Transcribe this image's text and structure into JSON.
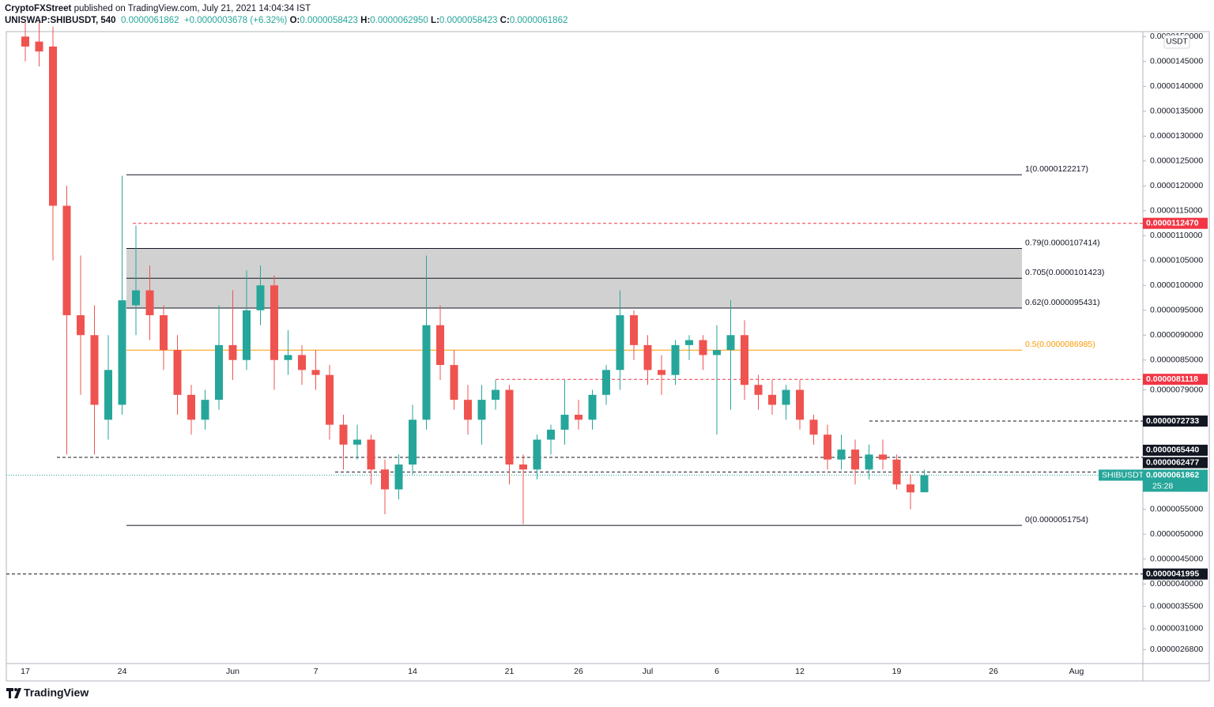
{
  "header": {
    "author": "CryptoFXStreet",
    "published": "published on TradingView.com, July 21, 2021 14:04:34 IST",
    "symbol": "UNISWAP:SHIBUSDT, 540",
    "last": "0.0000061862",
    "change": "+0.0000003678 (+6.32%)",
    "ohlc": [
      {
        "key": "O:",
        "value": "0.0000058423"
      },
      {
        "key": "H:",
        "value": "0.0000062950"
      },
      {
        "key": "L:",
        "value": "0.0000058423"
      },
      {
        "key": "C:",
        "value": "0.0000061862"
      }
    ]
  },
  "footer": {
    "brand": "TradingView"
  },
  "chart_data": {
    "type": "candlestick",
    "currency": "USDT",
    "categories": [
      "17",
      null,
      null,
      null,
      null,
      null,
      null,
      "24",
      null,
      null,
      null,
      null,
      null,
      null,
      null,
      "Jun",
      null,
      null,
      null,
      null,
      null,
      "7",
      null,
      null,
      null,
      null,
      null,
      null,
      "14",
      null,
      null,
      null,
      null,
      null,
      null,
      "21",
      null,
      null,
      null,
      null,
      "26",
      null,
      null,
      null,
      null,
      "Jul",
      null,
      null,
      null,
      null,
      "6",
      null,
      null,
      null,
      null,
      null,
      "12",
      null,
      null,
      null,
      null,
      null,
      null,
      "19",
      null,
      null,
      null,
      null,
      null,
      null,
      "26",
      null,
      null,
      null,
      null,
      null,
      "Aug",
      null,
      null,
      null,
      null
    ],
    "open": [
      1.5e-05,
      1.49e-05,
      1.48e-05,
      1.16e-05,
      9.4e-06,
      9e-06,
      7.3e-06,
      7.6e-06,
      9.6e-06,
      9.9e-06,
      9.4e-06,
      8.7e-06,
      7.8e-06,
      7.3e-06,
      7.7e-06,
      8.8e-06,
      8.5e-06,
      9.5e-06,
      1e-05,
      8.5e-06,
      8.6e-06,
      8.3e-06,
      8.2e-06,
      7.2e-06,
      6.8e-06,
      6.9e-06,
      6.3e-06,
      5.9e-06,
      6.4e-06,
      7.3e-06,
      9.2e-06,
      8.4e-06,
      7.7e-06,
      7.3e-06,
      7.7e-06,
      7.9e-06,
      6.4e-06,
      6.3e-06,
      6.9e-06,
      7.1e-06,
      7.4e-06,
      7.3e-06,
      7.8e-06,
      8.3e-06,
      9.4e-06,
      8.8e-06,
      8.3e-06,
      8.2e-06,
      8.8e-06,
      8.9e-06,
      8.6e-06,
      8.7e-06,
      9e-06,
      8e-06,
      7.8e-06,
      7.6e-06,
      7.9e-06,
      7.3e-06,
      7e-06,
      6.5e-06,
      6.7e-06,
      6.3e-06,
      6.6e-06,
      6.5e-06,
      6e-06,
      5.8423e-06,
      null,
      null,
      null,
      null,
      null,
      null,
      null,
      null,
      null,
      null,
      null,
      null,
      null,
      null,
      null
    ],
    "high": [
      1.53e-05,
      1.53e-05,
      1.52e-05,
      1.2e-05,
      1.06e-05,
      9.6e-06,
      9e-06,
      1.22e-05,
      1.12e-05,
      1.04e-05,
      9.6e-06,
      9e-06,
      8e-06,
      7.9e-06,
      9.6e-06,
      9.9e-06,
      1.03e-05,
      1.04e-05,
      1.02e-05,
      9.1e-06,
      8.8e-06,
      8.7e-06,
      8.4e-06,
      7.4e-06,
      7.2e-06,
      7e-06,
      6.5e-06,
      6.6e-06,
      7.6e-06,
      1.06e-05,
      9.6e-06,
      8.7e-06,
      8e-06,
      8e-06,
      8.1e-06,
      8e-06,
      6.6e-06,
      7e-06,
      7.2e-06,
      8.1e-06,
      7.7e-06,
      7.9e-06,
      8.4e-06,
      9.9e-06,
      9.5e-06,
      9e-06,
      8.6e-06,
      8.9e-06,
      9e-06,
      9e-06,
      9.2e-06,
      9.7e-06,
      9.3e-06,
      8.2e-06,
      8.1e-06,
      8e-06,
      8.1e-06,
      7.4e-06,
      7.2e-06,
      7e-06,
      6.9e-06,
      6.8e-06,
      6.9e-06,
      6.6e-06,
      6.2e-06,
      6.295e-06,
      null,
      null,
      null,
      null,
      null,
      null,
      null,
      null,
      null,
      null,
      null,
      null,
      null,
      null,
      null
    ],
    "low": [
      1.45e-05,
      1.44e-05,
      1.05e-05,
      6.6e-06,
      7.8e-06,
      6.6e-06,
      6.9e-06,
      7.4e-06,
      9e-06,
      8.9e-06,
      8.3e-06,
      7.4e-06,
      7e-06,
      7.1e-06,
      7.5e-06,
      8.1e-06,
      8.3e-06,
      9.2e-06,
      7.9e-06,
      8.2e-06,
      8e-06,
      7.9e-06,
      6.9e-06,
      6.3e-06,
      6.5e-06,
      6e-06,
      5.4e-06,
      5.7e-06,
      6.2e-06,
      7.1e-06,
      8.1e-06,
      7.5e-06,
      7e-06,
      6.8e-06,
      7.5e-06,
      6e-06,
      5.2e-06,
      6.1e-06,
      6.6e-06,
      6.8e-06,
      7.1e-06,
      7.1e-06,
      7.6e-06,
      7.9e-06,
      8.5e-06,
      8e-06,
      7.8e-06,
      8e-06,
      8.5e-06,
      8.3e-06,
      7e-06,
      7.5e-06,
      7.7e-06,
      7.5e-06,
      7.4e-06,
      7.3e-06,
      7.1e-06,
      6.8e-06,
      6.3e-06,
      6.3e-06,
      6e-06,
      6.1e-06,
      6.3e-06,
      5.9e-06,
      5.5e-06,
      5.8423e-06,
      null,
      null,
      null,
      null,
      null,
      null,
      null,
      null,
      null,
      null,
      null,
      null,
      null,
      null,
      null
    ],
    "close": [
      1.48e-05,
      1.47e-05,
      1.16e-05,
      9.4e-06,
      9e-06,
      7.6e-06,
      8.3e-06,
      9.7e-06,
      9.9e-06,
      9.4e-06,
      8.7e-06,
      7.8e-06,
      7.3e-06,
      7.7e-06,
      8.8e-06,
      8.5e-06,
      9.5e-06,
      1e-05,
      8.5e-06,
      8.6e-06,
      8.3e-06,
      8.2e-06,
      7.2e-06,
      6.8e-06,
      6.9e-06,
      6.3e-06,
      5.9e-06,
      6.4e-06,
      7.3e-06,
      9.2e-06,
      8.4e-06,
      7.7e-06,
      7.3e-06,
      7.7e-06,
      7.9e-06,
      6.4e-06,
      6.3e-06,
      6.9e-06,
      7.1e-06,
      7.4e-06,
      7.3e-06,
      7.8e-06,
      8.3e-06,
      9.4e-06,
      8.8e-06,
      8.3e-06,
      8.2e-06,
      8.8e-06,
      8.9e-06,
      8.6e-06,
      8.7e-06,
      9e-06,
      8e-06,
      7.8e-06,
      7.6e-06,
      7.9e-06,
      7.3e-06,
      7e-06,
      6.5e-06,
      6.7e-06,
      6.3e-06,
      6.6e-06,
      6.5e-06,
      6e-06,
      5.84e-06,
      6.1862e-06,
      null,
      null,
      null,
      null,
      null,
      null,
      null,
      null,
      null,
      null,
      null,
      null,
      null,
      null,
      null
    ],
    "up_color": "#26a69a",
    "down_color": "#ef5350",
    "ylim": [
      2.4e-06,
      1.51e-05
    ],
    "yticks": [
      {
        "value": 1.5e-05,
        "label": "0.0000150000"
      },
      {
        "value": 1.45e-05,
        "label": "0.0000145000"
      },
      {
        "value": 1.4e-05,
        "label": "0.0000140000"
      },
      {
        "value": 1.35e-05,
        "label": "0.0000135000"
      },
      {
        "value": 1.3e-05,
        "label": "0.0000130000"
      },
      {
        "value": 1.25e-05,
        "label": "0.0000125000"
      },
      {
        "value": 1.2e-05,
        "label": "0.0000120000"
      },
      {
        "value": 1.15e-05,
        "label": "0.0000115000"
      },
      {
        "value": 1.1e-05,
        "label": "0.0000110000"
      },
      {
        "value": 1.05e-05,
        "label": "0.0000105000"
      },
      {
        "value": 1e-05,
        "label": "0.0000100000"
      },
      {
        "value": 9.5e-06,
        "label": "0.0000095000"
      },
      {
        "value": 9e-06,
        "label": "0.0000090000"
      },
      {
        "value": 8.5e-06,
        "label": "0.0000085000"
      },
      {
        "value": 7.9e-06,
        "label": "0.0000079000"
      },
      {
        "value": 5.5e-06,
        "label": "0.0000055000"
      },
      {
        "value": 5e-06,
        "label": "0.0000050000"
      },
      {
        "value": 4.5e-06,
        "label": "0.0000045000"
      },
      {
        "value": 4e-06,
        "label": "0.0000040000"
      },
      {
        "value": 3.55e-06,
        "label": "0.0000035500"
      },
      {
        "value": 3.1e-06,
        "label": "0.0000031000"
      },
      {
        "value": 2.68e-06,
        "label": "0.0000026800"
      }
    ],
    "fib_levels": [
      {
        "label": "1(0.0000122217)",
        "value": 1.22217e-05,
        "color": "#131722"
      },
      {
        "label": "0.79(0.0000107414)",
        "value": 1.07414e-05,
        "color": "#131722"
      },
      {
        "label": "0.705(0.0000101423)",
        "value": 1.01423e-05,
        "color": "#131722"
      },
      {
        "label": "0.62(0.0000095431)",
        "value": 9.5431e-06,
        "color": "#131722"
      },
      {
        "label": "0.5(0.0000086985)",
        "value": 8.6985e-06,
        "color": "#ff9800"
      },
      {
        "label": "0(0.0000051754)",
        "value": 5.1754e-06,
        "color": "#131722"
      }
    ],
    "fib_zone_color": "#d1d1d1",
    "price_lines": [
      {
        "value": 1.1247e-05,
        "label": "0.0000112470",
        "color": "#f23645"
      },
      {
        "value": 8.1118e-06,
        "label": "0.0000081118",
        "color": "#f23645"
      },
      {
        "value": 7.2733e-06,
        "label": "0.0000072733",
        "color": "#131722"
      },
      {
        "value": 6.544e-06,
        "label": "0.0000065440",
        "color": "#131722"
      },
      {
        "value": 6.2477e-06,
        "label": "0.0000062477",
        "color": "#131722"
      },
      {
        "value": 4.1995e-06,
        "label": "0.0000041995",
        "color": "#131722"
      }
    ],
    "last_price": {
      "symbol": "SHIBUSDT",
      "value": 6.1862e-06,
      "label": "0.0000061862",
      "countdown": "25:28",
      "color": "#26a69a"
    }
  }
}
